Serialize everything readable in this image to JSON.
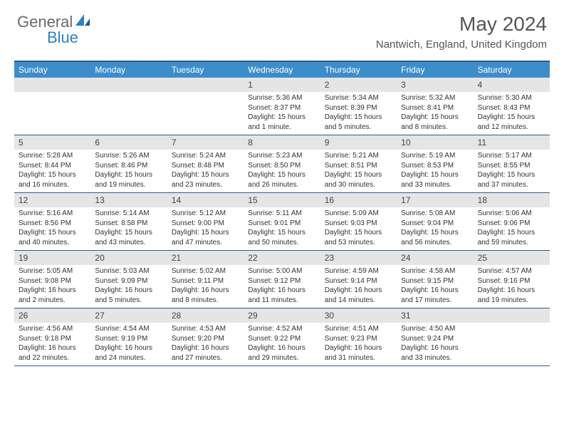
{
  "logo": {
    "part1": "General",
    "part2": "Blue"
  },
  "title": "May 2024",
  "location": "Nantwich, England, United Kingdom",
  "colors": {
    "header_bg": "#3d8dcb",
    "border": "#2f5d8a",
    "daynum_bg": "#e5e5e5",
    "logo_gray": "#6a6a6a",
    "logo_blue": "#2f7fc2"
  },
  "weekdays": [
    "Sunday",
    "Monday",
    "Tuesday",
    "Wednesday",
    "Thursday",
    "Friday",
    "Saturday"
  ],
  "weeks": [
    [
      null,
      null,
      null,
      {
        "n": "1",
        "sr": "Sunrise: 5:36 AM",
        "ss": "Sunset: 8:37 PM",
        "dl": "Daylight: 15 hours and 1 minute."
      },
      {
        "n": "2",
        "sr": "Sunrise: 5:34 AM",
        "ss": "Sunset: 8:39 PM",
        "dl": "Daylight: 15 hours and 5 minutes."
      },
      {
        "n": "3",
        "sr": "Sunrise: 5:32 AM",
        "ss": "Sunset: 8:41 PM",
        "dl": "Daylight: 15 hours and 8 minutes."
      },
      {
        "n": "4",
        "sr": "Sunrise: 5:30 AM",
        "ss": "Sunset: 8:43 PM",
        "dl": "Daylight: 15 hours and 12 minutes."
      }
    ],
    [
      {
        "n": "5",
        "sr": "Sunrise: 5:28 AM",
        "ss": "Sunset: 8:44 PM",
        "dl": "Daylight: 15 hours and 16 minutes."
      },
      {
        "n": "6",
        "sr": "Sunrise: 5:26 AM",
        "ss": "Sunset: 8:46 PM",
        "dl": "Daylight: 15 hours and 19 minutes."
      },
      {
        "n": "7",
        "sr": "Sunrise: 5:24 AM",
        "ss": "Sunset: 8:48 PM",
        "dl": "Daylight: 15 hours and 23 minutes."
      },
      {
        "n": "8",
        "sr": "Sunrise: 5:23 AM",
        "ss": "Sunset: 8:50 PM",
        "dl": "Daylight: 15 hours and 26 minutes."
      },
      {
        "n": "9",
        "sr": "Sunrise: 5:21 AM",
        "ss": "Sunset: 8:51 PM",
        "dl": "Daylight: 15 hours and 30 minutes."
      },
      {
        "n": "10",
        "sr": "Sunrise: 5:19 AM",
        "ss": "Sunset: 8:53 PM",
        "dl": "Daylight: 15 hours and 33 minutes."
      },
      {
        "n": "11",
        "sr": "Sunrise: 5:17 AM",
        "ss": "Sunset: 8:55 PM",
        "dl": "Daylight: 15 hours and 37 minutes."
      }
    ],
    [
      {
        "n": "12",
        "sr": "Sunrise: 5:16 AM",
        "ss": "Sunset: 8:56 PM",
        "dl": "Daylight: 15 hours and 40 minutes."
      },
      {
        "n": "13",
        "sr": "Sunrise: 5:14 AM",
        "ss": "Sunset: 8:58 PM",
        "dl": "Daylight: 15 hours and 43 minutes."
      },
      {
        "n": "14",
        "sr": "Sunrise: 5:12 AM",
        "ss": "Sunset: 9:00 PM",
        "dl": "Daylight: 15 hours and 47 minutes."
      },
      {
        "n": "15",
        "sr": "Sunrise: 5:11 AM",
        "ss": "Sunset: 9:01 PM",
        "dl": "Daylight: 15 hours and 50 minutes."
      },
      {
        "n": "16",
        "sr": "Sunrise: 5:09 AM",
        "ss": "Sunset: 9:03 PM",
        "dl": "Daylight: 15 hours and 53 minutes."
      },
      {
        "n": "17",
        "sr": "Sunrise: 5:08 AM",
        "ss": "Sunset: 9:04 PM",
        "dl": "Daylight: 15 hours and 56 minutes."
      },
      {
        "n": "18",
        "sr": "Sunrise: 5:06 AM",
        "ss": "Sunset: 9:06 PM",
        "dl": "Daylight: 15 hours and 59 minutes."
      }
    ],
    [
      {
        "n": "19",
        "sr": "Sunrise: 5:05 AM",
        "ss": "Sunset: 9:08 PM",
        "dl": "Daylight: 16 hours and 2 minutes."
      },
      {
        "n": "20",
        "sr": "Sunrise: 5:03 AM",
        "ss": "Sunset: 9:09 PM",
        "dl": "Daylight: 16 hours and 5 minutes."
      },
      {
        "n": "21",
        "sr": "Sunrise: 5:02 AM",
        "ss": "Sunset: 9:11 PM",
        "dl": "Daylight: 16 hours and 8 minutes."
      },
      {
        "n": "22",
        "sr": "Sunrise: 5:00 AM",
        "ss": "Sunset: 9:12 PM",
        "dl": "Daylight: 16 hours and 11 minutes."
      },
      {
        "n": "23",
        "sr": "Sunrise: 4:59 AM",
        "ss": "Sunset: 9:14 PM",
        "dl": "Daylight: 16 hours and 14 minutes."
      },
      {
        "n": "24",
        "sr": "Sunrise: 4:58 AM",
        "ss": "Sunset: 9:15 PM",
        "dl": "Daylight: 16 hours and 17 minutes."
      },
      {
        "n": "25",
        "sr": "Sunrise: 4:57 AM",
        "ss": "Sunset: 9:16 PM",
        "dl": "Daylight: 16 hours and 19 minutes."
      }
    ],
    [
      {
        "n": "26",
        "sr": "Sunrise: 4:56 AM",
        "ss": "Sunset: 9:18 PM",
        "dl": "Daylight: 16 hours and 22 minutes."
      },
      {
        "n": "27",
        "sr": "Sunrise: 4:54 AM",
        "ss": "Sunset: 9:19 PM",
        "dl": "Daylight: 16 hours and 24 minutes."
      },
      {
        "n": "28",
        "sr": "Sunrise: 4:53 AM",
        "ss": "Sunset: 9:20 PM",
        "dl": "Daylight: 16 hours and 27 minutes."
      },
      {
        "n": "29",
        "sr": "Sunrise: 4:52 AM",
        "ss": "Sunset: 9:22 PM",
        "dl": "Daylight: 16 hours and 29 minutes."
      },
      {
        "n": "30",
        "sr": "Sunrise: 4:51 AM",
        "ss": "Sunset: 9:23 PM",
        "dl": "Daylight: 16 hours and 31 minutes."
      },
      {
        "n": "31",
        "sr": "Sunrise: 4:50 AM",
        "ss": "Sunset: 9:24 PM",
        "dl": "Daylight: 16 hours and 33 minutes."
      },
      null
    ]
  ]
}
